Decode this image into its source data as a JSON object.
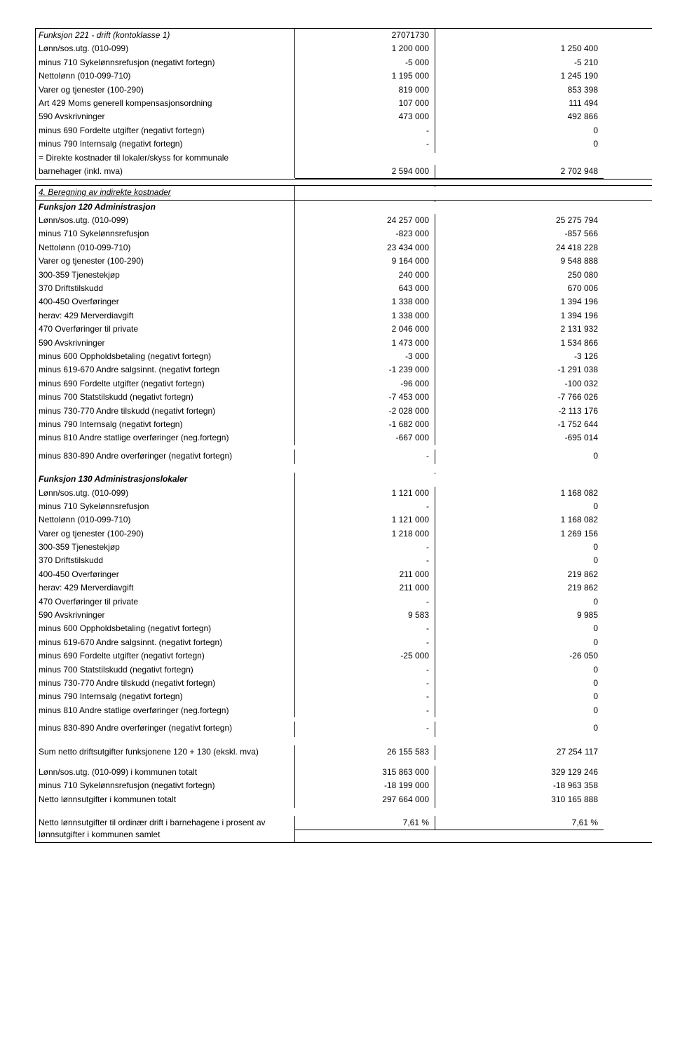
{
  "section1": {
    "title": "Funksjon 221 - drift (kontoklasse 1)",
    "rows": [
      {
        "label": "Lønn/sos.utg. (010-099)",
        "v1": "1 200 000",
        "v2": "1 250 400"
      },
      {
        "label": "minus 710 Sykelønnsrefusjon (negativt fortegn)",
        "v1": "-5 000",
        "v2": "-5 210"
      },
      {
        "label": "Nettolønn (010-099-710)",
        "v1": "1 195 000",
        "v2": "1 245 190"
      },
      {
        "label": "Varer og tjenester (100-290)",
        "v1": "819 000",
        "v2": "853 398"
      },
      {
        "label": "Art 429 Moms generell kompensasjonsordning",
        "v1": "107 000",
        "v2": "111 494"
      },
      {
        "label": "590 Avskrivninger",
        "v1": "473 000",
        "v2": "492 866"
      },
      {
        "label": "minus 690 Fordelte utgifter (negativt fortegn)",
        "v1": "-",
        "v2": "0"
      },
      {
        "label": "minus 790 Internsalg (negativt fortegn)",
        "v1": "-",
        "v2": "0"
      },
      {
        "label": "= Direkte kostnader til lokaler/skyss for kommunale",
        "v1": "",
        "v2": ""
      },
      {
        "label": "barnehager (inkl. mva)",
        "v1": "2 594 000",
        "v2": "2 702 948"
      }
    ],
    "headerExtra": "27071730"
  },
  "section2": {
    "header": "4. Beregning av indirekte kostnader",
    "subA": {
      "title": "Funksjon 120 Administrasjon",
      "rows": [
        {
          "label": "Lønn/sos.utg. (010-099)",
          "v1": "24 257 000",
          "v2": "25 275 794"
        },
        {
          "label": "minus 710 Sykelønnsrefusjon",
          "v1": "-823 000",
          "v2": "-857 566"
        },
        {
          "label": "Nettolønn (010-099-710)",
          "v1": "23 434 000",
          "v2": "24 418 228"
        },
        {
          "label": "Varer og tjenester (100-290)",
          "v1": "9 164 000",
          "v2": "9 548 888"
        },
        {
          "label": "300-359 Tjenestekjøp",
          "v1": "240 000",
          "v2": "250 080"
        },
        {
          "label": "370 Driftstilskudd",
          "v1": "643 000",
          "v2": "670 006"
        },
        {
          "label": "400-450 Overføringer",
          "v1": "1 338 000",
          "v2": "1 394 196"
        },
        {
          "label": "herav: 429 Merverdiavgift",
          "v1": "1 338 000",
          "v2": "1 394 196"
        },
        {
          "label": "470 Overføringer til private",
          "v1": "2 046 000",
          "v2": "2 131 932"
        },
        {
          "label": "590 Avskrivninger",
          "v1": "1 473 000",
          "v2": "1 534 866"
        },
        {
          "label": "minus 600 Oppholdsbetaling (negativt fortegn)",
          "v1": "-3 000",
          "v2": "-3 126"
        },
        {
          "label": "minus 619-670 Andre salgsinnt. (negativt fortegn",
          "v1": "-1 239 000",
          "v2": "-1 291 038"
        },
        {
          "label": "minus 690 Fordelte utgifter (negativt fortegn)",
          "v1": "-96 000",
          "v2": "-100 032"
        },
        {
          "label": "minus 700 Statstilskudd (negativt fortegn)",
          "v1": "-7 453 000",
          "v2": "-7 766 026"
        },
        {
          "label": "minus 730-770 Andre tilskudd (negativt fortegn)",
          "v1": "-2 028 000",
          "v2": "-2 113 176"
        },
        {
          "label": "minus 790 Internsalg (negativt fortegn)",
          "v1": "-1 682 000",
          "v2": "-1 752 644"
        },
        {
          "label": "minus 810 Andre statlige overføringer (neg.fortegn)",
          "v1": "-667 000",
          "v2": "-695 014"
        }
      ],
      "lastRow": {
        "label": "minus 830-890 Andre overføringer (negativt fortegn)",
        "v1": "-",
        "v2": "0"
      }
    },
    "subB": {
      "title": "Funksjon 130 Administrasjonslokaler",
      "rows": [
        {
          "label": "Lønn/sos.utg. (010-099)",
          "v1": "1 121 000",
          "v2": "1 168 082"
        },
        {
          "label": "minus 710 Sykelønnsrefusjon",
          "v1": "-",
          "v2": "0"
        },
        {
          "label": "Nettolønn (010-099-710)",
          "v1": "1 121 000",
          "v2": "1 168 082"
        },
        {
          "label": "Varer og tjenester (100-290)",
          "v1": "1 218 000",
          "v2": "1 269 156"
        },
        {
          "label": "300-359 Tjenestekjøp",
          "v1": "-",
          "v2": "0"
        },
        {
          "label": "370 Driftstilskudd",
          "v1": "-",
          "v2": "0"
        },
        {
          "label": "400-450 Overføringer",
          "v1": "211 000",
          "v2": "219 862"
        },
        {
          "label": "herav: 429 Merverdiavgift",
          "v1": "211 000",
          "v2": "219 862"
        },
        {
          "label": "470 Overføringer til private",
          "v1": "-",
          "v2": "0"
        },
        {
          "label": "590 Avskrivninger",
          "v1": "9 583",
          "v2": "9 985"
        },
        {
          "label": "minus 600 Oppholdsbetaling (negativt fortegn)",
          "v1": "-",
          "v2": "0"
        },
        {
          "label": "minus 619-670 Andre salgsinnt. (negativt fortegn)",
          "v1": "-",
          "v2": "0"
        },
        {
          "label": "minus 690 Fordelte utgifter (negativt fortegn)",
          "v1": "-25 000",
          "v2": "-26 050"
        },
        {
          "label": "minus 700 Statstilskudd (negativt fortegn)",
          "v1": "-",
          "v2": "0"
        },
        {
          "label": "minus 730-770 Andre tilskudd (negativt fortegn)",
          "v1": "-",
          "v2": "0"
        },
        {
          "label": "minus 790 Internsalg (negativt fortegn)",
          "v1": "-",
          "v2": "0"
        },
        {
          "label": "minus 810 Andre statlige overføringer (neg.fortegn)",
          "v1": "-",
          "v2": "0"
        }
      ],
      "lastRow": {
        "label": "minus 830-890 Andre overføringer (negativt fortegn)",
        "v1": "-",
        "v2": "0"
      }
    },
    "totals": [
      {
        "label": "Sum netto driftsutgifter funksjonene 120 + 130 (ekskl. mva)",
        "v1": "26 155 583",
        "v2": "27 254 117"
      },
      {
        "label": "Lønn/sos.utg. (010-099) i kommunen totalt",
        "v1": "315 863 000",
        "v2": "329 129 246"
      },
      {
        "label": "minus 710 Sykelønnsrefusjon (negativt fortegn)",
        "v1": "-18 199 000",
        "v2": "-18 963 358"
      },
      {
        "label": "Netto lønnsutgifter i kommunen totalt",
        "v1": "297 664 000",
        "v2": "310 165 888"
      }
    ],
    "pct": {
      "label": "Netto lønnsutgifter til ordinær drift i barnehagene i prosent av lønnsutgifter i kommunen samlet",
      "v1": "7,61 %",
      "v2": "7,61 %"
    }
  }
}
